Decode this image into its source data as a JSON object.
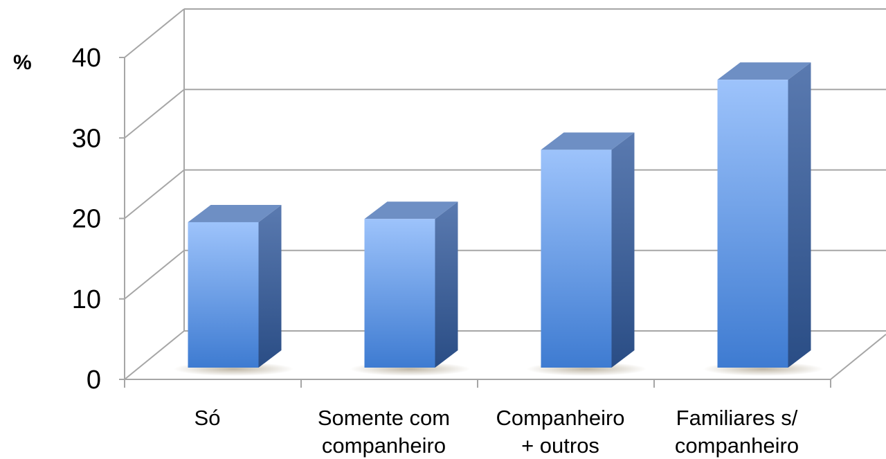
{
  "chart_data": {
    "type": "bar",
    "ylabel": "%",
    "categories": [
      [
        "Só"
      ],
      [
        "Somente com",
        "companheiro"
      ],
      [
        "Companheiro",
        "+ outros"
      ],
      [
        "Familiares s/",
        "companheiro"
      ]
    ],
    "values": [
      18.5,
      18.9,
      27.5,
      36.2
    ],
    "ylim": [
      0,
      40
    ],
    "yticks": [
      0,
      10,
      20,
      30,
      40
    ],
    "grid": true,
    "three_d": true,
    "legend": "none",
    "colors": {
      "bar_top": "#9dc3fb",
      "bar_bottom": "#3e7bd1",
      "bar_side_top": "#5a7ab0",
      "bar_side_bottom": "#2a4d85",
      "bar_cap": "#6e8fc4",
      "grid": "#a6a6a6"
    }
  }
}
